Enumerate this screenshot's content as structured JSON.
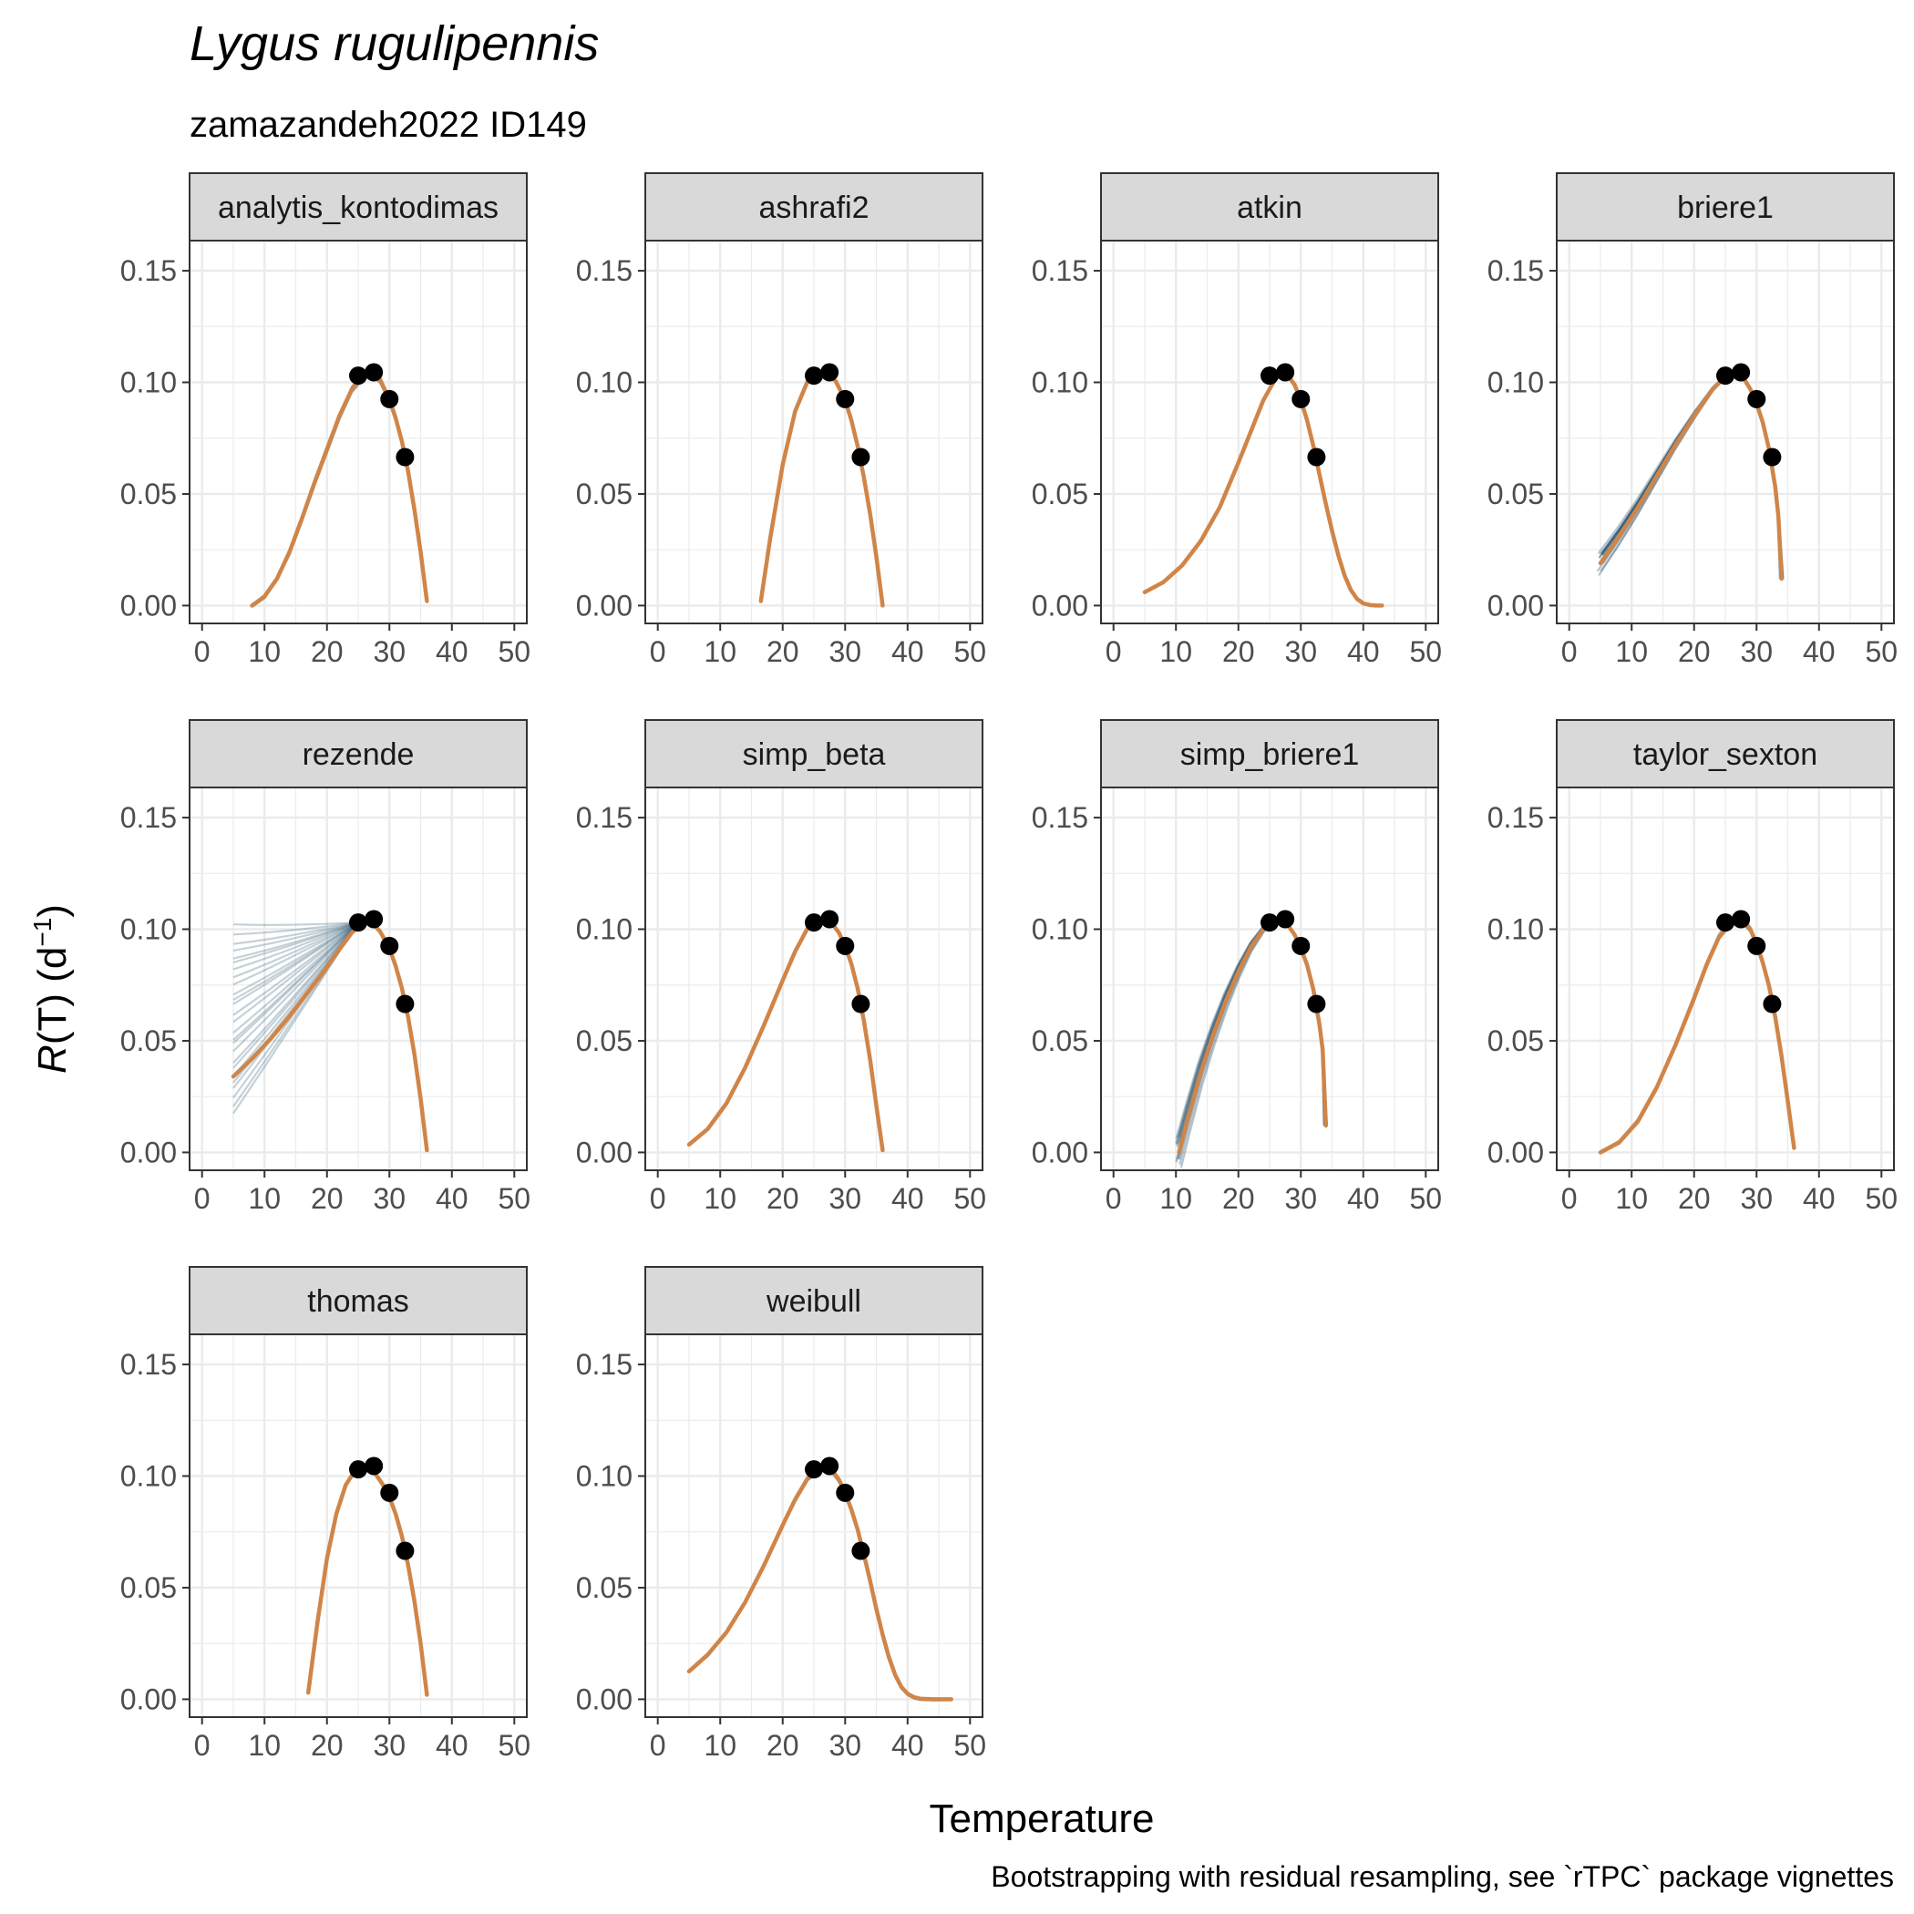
{
  "title": "Lygus rugulipennis",
  "subtitle": "zamazandeh2022 ID149",
  "y_axis_label": {
    "italic": "R",
    "rest": "(T) (d",
    "sup": "−1",
    "close": ")"
  },
  "x_axis_label": "Temperature",
  "caption": "Bootstrapping with residual resampling, see `rTPC` package vignettes",
  "colors": {
    "fit_line": "#d08548",
    "bootstrap_lines": "#2e5a73",
    "points": "#000000",
    "strip_fill": "#d9d9d9",
    "grid": "#ebebeb",
    "panel_border": "#333333"
  },
  "chart_data": {
    "type": "line",
    "layout": "facet-wrap 4 columns",
    "xlim": [
      -2,
      52
    ],
    "ylim": [
      -0.008,
      0.1635
    ],
    "x_ticks": [
      0,
      10,
      20,
      30,
      40,
      50
    ],
    "x_tick_labels": [
      "0",
      "10",
      "20",
      "30",
      "40",
      "50"
    ],
    "y_ticks": [
      0.0,
      0.05,
      0.1,
      0.15
    ],
    "y_tick_labels": [
      "0.00",
      "0.05",
      "0.10",
      "0.15"
    ],
    "grid": true,
    "observed_points": {
      "x": [
        25,
        27.5,
        30,
        32.5
      ],
      "y": [
        0.103,
        0.1045,
        0.0925,
        0.0665
      ]
    },
    "panels": [
      {
        "name": "analytis_kontodimas",
        "fit": {
          "x": [
            8,
            10,
            12,
            14,
            16,
            18,
            20,
            22,
            24,
            26,
            27.5,
            28.5,
            30,
            31,
            32,
            33,
            34,
            35,
            36
          ],
          "y": [
            0.0,
            0.004,
            0.012,
            0.024,
            0.039,
            0.055,
            0.07,
            0.085,
            0.097,
            0.1035,
            0.1035,
            0.101,
            0.0925,
            0.084,
            0.0735,
            0.06,
            0.043,
            0.024,
            0.002
          ]
        },
        "bootstrap": {
          "style": "tight",
          "spread": 0.0015,
          "count": 10
        }
      },
      {
        "name": "ashrafi2",
        "fit": {
          "x": [
            16.5,
            18,
            20,
            22,
            24,
            25.5,
            27,
            28.5,
            30,
            31,
            32,
            33,
            34,
            35,
            36
          ],
          "y": [
            0.002,
            0.03,
            0.063,
            0.087,
            0.1005,
            0.1045,
            0.1045,
            0.1005,
            0.092,
            0.083,
            0.0715,
            0.0575,
            0.041,
            0.022,
            0.0
          ]
        },
        "bootstrap": {
          "style": "tight",
          "spread": 0.0008,
          "count": 6
        }
      },
      {
        "name": "atkin",
        "fit": {
          "x": [
            5,
            8,
            11,
            14,
            17,
            20,
            22,
            24,
            26,
            27.5,
            29,
            30,
            31,
            32,
            33,
            34,
            35,
            36,
            37,
            38,
            39,
            40,
            41,
            42,
            43
          ],
          "y": [
            0.006,
            0.0105,
            0.018,
            0.029,
            0.044,
            0.064,
            0.078,
            0.092,
            0.102,
            0.1045,
            0.099,
            0.092,
            0.083,
            0.0715,
            0.0585,
            0.0455,
            0.0335,
            0.0225,
            0.0135,
            0.007,
            0.003,
            0.001,
            0.0003,
            0.0,
            0.0
          ]
        },
        "bootstrap": {
          "style": "tight",
          "spread": 0.0008,
          "count": 6
        }
      },
      {
        "name": "briere1",
        "fit": {
          "x": [
            5,
            8,
            11,
            14,
            17,
            20,
            23,
            25,
            27,
            28,
            29,
            30,
            31,
            32,
            33,
            33.5,
            34
          ],
          "y": [
            0.019,
            0.031,
            0.044,
            0.058,
            0.072,
            0.085,
            0.097,
            0.1025,
            0.104,
            0.1015,
            0.097,
            0.0905,
            0.082,
            0.07,
            0.053,
            0.04,
            0.012
          ]
        },
        "bootstrap": {
          "style": "fan-left",
          "spread": 0.006,
          "count": 16
        }
      },
      {
        "name": "rezende",
        "fit": {
          "x": [
            5,
            8,
            11,
            14,
            17,
            20,
            22,
            24,
            25.5,
            27,
            28.5,
            30,
            31,
            32,
            33,
            34,
            35,
            36
          ],
          "y": [
            0.034,
            0.042,
            0.051,
            0.061,
            0.072,
            0.083,
            0.091,
            0.0985,
            0.1025,
            0.1035,
            0.099,
            0.0915,
            0.0835,
            0.0735,
            0.0605,
            0.044,
            0.024,
            0.001
          ]
        },
        "bootstrap": {
          "style": "rezende",
          "spread": 0.04,
          "count": 26
        }
      },
      {
        "name": "simp_beta",
        "fit": {
          "x": [
            5,
            8,
            11,
            14,
            17,
            20,
            22,
            24,
            26,
            27.5,
            29,
            30,
            31,
            32,
            33,
            34,
            35,
            36
          ],
          "y": [
            0.0035,
            0.0105,
            0.022,
            0.038,
            0.057,
            0.077,
            0.09,
            0.1005,
            0.1045,
            0.104,
            0.0985,
            0.0925,
            0.0845,
            0.0735,
            0.059,
            0.0415,
            0.021,
            0.001
          ]
        },
        "bootstrap": {
          "style": "tight",
          "spread": 0.0008,
          "count": 6
        }
      },
      {
        "name": "simp_briere1",
        "fit": {
          "x": [
            10.5,
            12,
            14,
            16,
            18,
            20,
            22,
            24,
            26,
            27.5,
            29,
            30,
            31,
            32,
            33,
            33.5,
            34
          ],
          "y": [
            0.0,
            0.016,
            0.036,
            0.053,
            0.068,
            0.081,
            0.092,
            0.1,
            0.104,
            0.1035,
            0.0975,
            0.0915,
            0.084,
            0.073,
            0.057,
            0.046,
            0.012
          ]
        },
        "bootstrap": {
          "style": "fan-left",
          "spread": 0.007,
          "count": 16
        }
      },
      {
        "name": "taylor_sexton",
        "fit": {
          "x": [
            5,
            8,
            11,
            14,
            17,
            20,
            22,
            24,
            26,
            27.5,
            29,
            30,
            31,
            32,
            33,
            34,
            35,
            36
          ],
          "y": [
            0.0,
            0.0045,
            0.014,
            0.029,
            0.048,
            0.069,
            0.084,
            0.0965,
            0.1035,
            0.1045,
            0.1,
            0.0935,
            0.085,
            0.0745,
            0.0605,
            0.043,
            0.023,
            0.002
          ]
        },
        "bootstrap": {
          "style": "tight",
          "spread": 0.0018,
          "count": 8
        }
      },
      {
        "name": "thomas",
        "fit": {
          "x": [
            17,
            18.5,
            20,
            21.5,
            23,
            24.5,
            26,
            27.5,
            29,
            30,
            31,
            32,
            33,
            34,
            35,
            36
          ],
          "y": [
            0.003,
            0.035,
            0.063,
            0.083,
            0.096,
            0.1025,
            0.1045,
            0.102,
            0.096,
            0.0905,
            0.083,
            0.073,
            0.06,
            0.044,
            0.025,
            0.002
          ]
        },
        "bootstrap": {
          "style": "tight",
          "spread": 0.0006,
          "count": 5
        }
      },
      {
        "name": "weibull",
        "fit": {
          "x": [
            5,
            8,
            11,
            14,
            17,
            20,
            22,
            24,
            26,
            27.5,
            29,
            30,
            31,
            32,
            33,
            34,
            35,
            36,
            37,
            38,
            39,
            40,
            41,
            42,
            44,
            47
          ],
          "y": [
            0.0125,
            0.02,
            0.03,
            0.0435,
            0.06,
            0.078,
            0.0895,
            0.099,
            0.1035,
            0.104,
            0.0985,
            0.0925,
            0.085,
            0.076,
            0.065,
            0.053,
            0.0405,
            0.029,
            0.019,
            0.011,
            0.0055,
            0.0025,
            0.001,
            0.0003,
            0.0,
            0.0
          ]
        },
        "bootstrap": {
          "style": "tight",
          "spread": 0.0015,
          "count": 8
        }
      }
    ]
  }
}
